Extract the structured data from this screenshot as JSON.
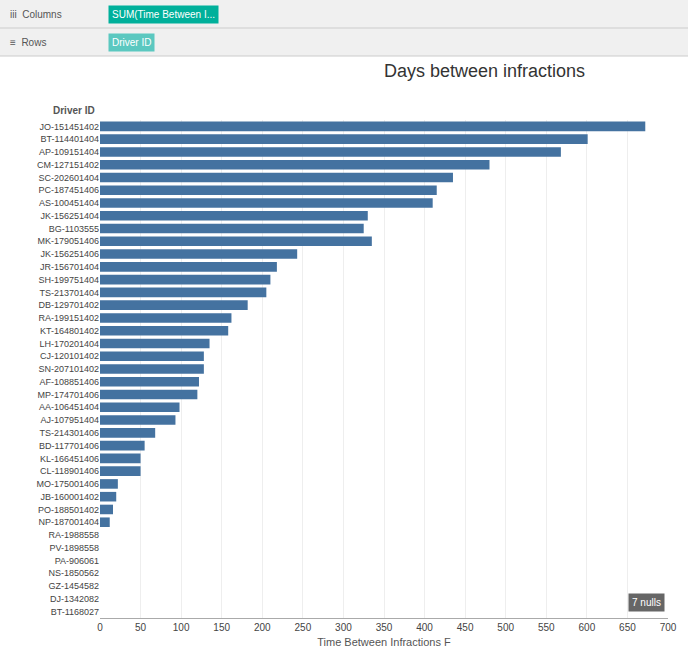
{
  "chart_data": {
    "type": "bar",
    "orientation": "horizontal",
    "title": "Days between infractions",
    "xlabel": "Time Between Infractions F",
    "categories": [
      "JO-151451402",
      "BT-114401404",
      "AP-109151404",
      "CM-127151402",
      "SC-202601404",
      "PC-187451406",
      "AS-100451404",
      "JK-156251404",
      "BG-1103555",
      "MK-179051406",
      "JK-156251406",
      "JR-156701404",
      "SH-199751404",
      "TS-213701404",
      "DB-129701402",
      "RA-199151402",
      "KT-164801402",
      "LH-170201404",
      "CJ-120101402",
      "SN-207101402",
      "AF-108851406",
      "MP-174701406",
      "AA-106451404",
      "AJ-107951404",
      "TS-214301406",
      "BD-117701406",
      "KL-166451406",
      "CL-118901406",
      "MO-175001406",
      "JB-160001402",
      "PO-188501402",
      "NP-187001404",
      "RA-1988558",
      "PV-1898558",
      "PA-906061",
      "NS-1850562",
      "GZ-1454582",
      "DJ-1342082",
      "BT-1168027"
    ],
    "values": [
      672,
      601,
      568,
      480,
      435,
      415,
      410,
      330,
      325,
      335,
      243,
      218,
      210,
      205,
      182,
      162,
      158,
      135,
      128,
      128,
      122,
      120,
      98,
      93,
      68,
      55,
      50,
      50,
      22,
      20,
      16,
      12,
      0,
      0,
      0,
      0,
      0,
      0,
      0
    ],
    "color": "#4472a0",
    "xlim": [
      0,
      700
    ],
    "xticks": [
      0,
      50,
      100,
      150,
      200,
      250,
      300,
      350,
      400,
      450,
      500,
      550,
      600,
      650,
      700
    ],
    "grid": true,
    "annotations": [
      "iii  Columns",
      "SUM(Time Between I...",
      "≡  Rows",
      "Driver ID",
      "Driver ID",
      "7 nulls"
    ]
  }
}
